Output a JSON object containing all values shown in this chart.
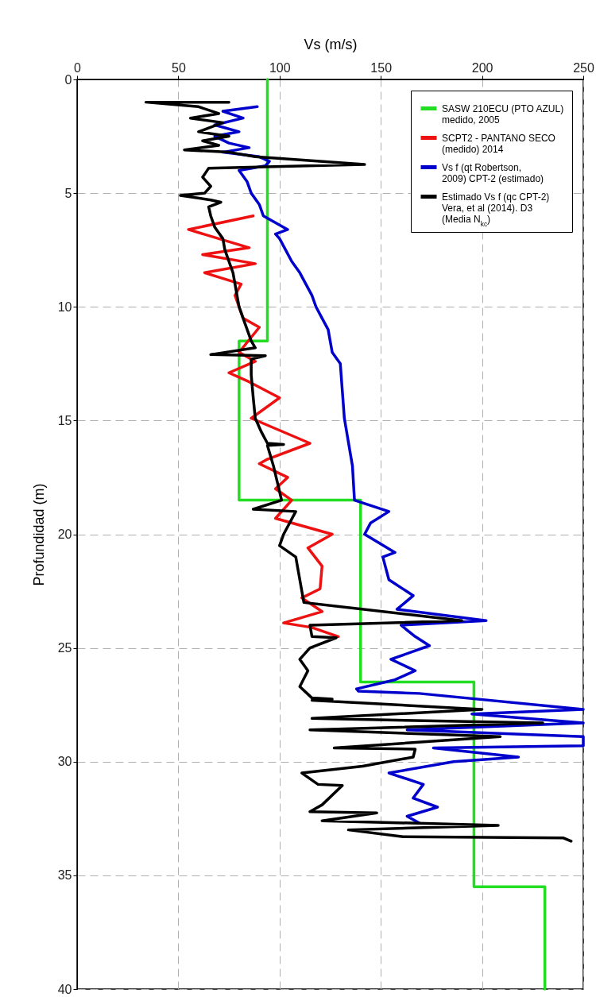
{
  "chart_data": {
    "type": "line",
    "xlabel": "Vs (m/s)",
    "ylabel": "Profundidad (m)",
    "xlim": [
      0,
      250
    ],
    "xticks": [
      0,
      50,
      100,
      150,
      200,
      250
    ],
    "ylim": [
      40,
      0
    ],
    "yticks": [
      0,
      5,
      10,
      15,
      20,
      25,
      30,
      35,
      40
    ],
    "grid": true,
    "legend": "top right",
    "marker": "none",
    "line_style": "solid",
    "series": [
      {
        "name": "SASW 210ECU (PTO AZUL) medido, 2005",
        "color": "#22dd22",
        "x": [
          94,
          94,
          80,
          80,
          140,
          140,
          196,
          196,
          231,
          231
        ],
        "values": [
          0,
          11.5,
          11.5,
          18.5,
          18.5,
          26.5,
          26.5,
          35.5,
          35.5,
          40
        ]
      },
      {
        "name": "SCPT2 - PANTANO SECO (medido) 2014",
        "color": "#ee1111",
        "x": [
          87,
          55,
          85,
          62,
          88,
          63,
          81,
          78,
          82,
          90,
          80,
          88,
          75,
          85,
          100,
          86,
          115,
          94,
          90,
          104,
          98,
          106,
          98,
          126,
          114,
          121,
          120,
          111,
          121,
          102,
          116,
          129
        ],
        "values": [
          6.0,
          6.6,
          7.4,
          7.7,
          8.1,
          8.5,
          9.0,
          9.5,
          10.5,
          10.9,
          12.0,
          12.4,
          12.9,
          13.3,
          14.0,
          14.9,
          16.0,
          16.7,
          16.9,
          17.5,
          18.0,
          18.5,
          19.3,
          20.0,
          20.6,
          21.4,
          22.4,
          22.8,
          23.4,
          23.9,
          24.1,
          24.5
        ]
      },
      {
        "name": "Vs f (qt Robertson, 2009) CPT-2 (estimado)",
        "color": "#0000cc",
        "x": [
          89,
          72,
          82,
          68,
          80,
          68,
          75,
          85,
          72,
          90,
          95,
          93,
          80,
          84,
          86,
          90,
          92,
          104,
          98,
          100,
          103,
          106,
          110,
          113,
          116,
          118,
          121,
          124,
          125,
          126,
          130,
          132,
          136,
          137,
          154,
          145,
          142,
          157,
          151,
          154,
          166,
          158,
          202,
          160,
          167,
          174,
          155,
          167,
          157,
          138,
          139,
          169,
          250,
          195,
          250,
          163,
          250,
          250,
          176,
          218,
          186,
          154,
          171,
          166,
          178,
          163,
          169
        ],
        "values": [
          1.2,
          1.4,
          1.7,
          2.0,
          2.3,
          2.5,
          2.8,
          3.0,
          3.2,
          3.4,
          3.6,
          3.8,
          4.0,
          4.5,
          5.0,
          5.5,
          6.0,
          6.6,
          6.8,
          7.0,
          7.5,
          8.0,
          8.5,
          9.0,
          9.5,
          10.0,
          10.5,
          11.0,
          11.5,
          12.0,
          12.5,
          14.9,
          17.0,
          18.5,
          19.0,
          19.5,
          20.0,
          20.8,
          21.0,
          22.0,
          22.7,
          23.3,
          23.8,
          24.0,
          24.5,
          24.9,
          25.5,
          26.0,
          26.4,
          26.8,
          26.9,
          27.0,
          27.7,
          27.9,
          28.3,
          28.6,
          28.9,
          29.3,
          29.4,
          29.8,
          30.0,
          30.5,
          31.0,
          31.6,
          32.0,
          32.4,
          32.7
        ]
      },
      {
        "name": "Estimado Vs f (qc CPT-2) Vera, et al (2014). D3 (Media N$_{kc}$)",
        "color": "#000000",
        "x": [
          75,
          34,
          60,
          70,
          56,
          72,
          66,
          60,
          75,
          62,
          70,
          53,
          75,
          88,
          142,
          65,
          62,
          66,
          63,
          51,
          66,
          71,
          65,
          66,
          68,
          72,
          73,
          75,
          77,
          78,
          79,
          80,
          82,
          84,
          86,
          88,
          66,
          93,
          86,
          86,
          87,
          88,
          91,
          94,
          102,
          94,
          97,
          101,
          87,
          108,
          102,
          100,
          108,
          110,
          112,
          190,
          115,
          116,
          128,
          115,
          110,
          114,
          110,
          116,
          126,
          116,
          200,
          116,
          230,
          115,
          209,
          127,
          167,
          166,
          141,
          111,
          119,
          131,
          121,
          115,
          148,
          121,
          208,
          134,
          161,
          240,
          244
        ],
        "values": [
          1.0,
          1.0,
          1.2,
          1.5,
          1.7,
          1.9,
          2.1,
          2.3,
          2.5,
          2.7,
          2.9,
          3.1,
          3.2,
          3.4,
          3.74,
          3.9,
          4.3,
          4.7,
          5.0,
          5.1,
          5.3,
          5.4,
          5.6,
          6.0,
          6.5,
          7.0,
          7.5,
          8.0,
          8.5,
          9.0,
          9.5,
          10.0,
          10.5,
          11.0,
          11.5,
          11.8,
          12.1,
          12.15,
          12.3,
          13.0,
          14.0,
          14.9,
          15.5,
          16.0,
          16.05,
          16.1,
          17.0,
          18.5,
          18.9,
          19.0,
          20.0,
          20.5,
          21.0,
          22.0,
          23.0,
          23.8,
          24.0,
          24.5,
          24.55,
          25.0,
          25.5,
          26.0,
          26.7,
          27.2,
          27.25,
          27.3,
          27.7,
          28.1,
          28.3,
          28.6,
          28.9,
          29.4,
          29.45,
          29.8,
          30.2,
          30.5,
          31.0,
          31.05,
          31.9,
          32.2,
          32.25,
          32.6,
          32.8,
          33.0,
          33.3,
          33.35,
          33.5
        ]
      }
    ]
  }
}
